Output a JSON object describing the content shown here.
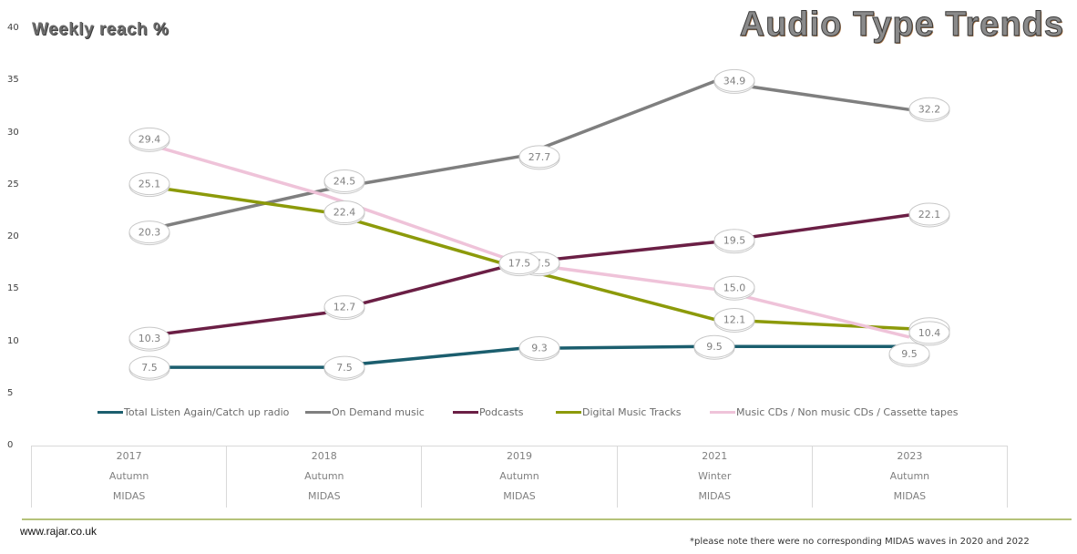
{
  "page": {
    "title": "Audio Type Trends",
    "subtitle": "Weekly reach %",
    "site": "www.rajar.co.uk",
    "note": "*please note there were no corresponding MIDAS waves in 2020 and 2022"
  },
  "y_axis": {
    "ticks": [
      "0",
      "5",
      "10",
      "15",
      "20",
      "25",
      "30",
      "35",
      "40"
    ]
  },
  "x_axis": {
    "cells": [
      {
        "year": "2017",
        "season": "Autumn",
        "source": "MIDAS"
      },
      {
        "year": "2018",
        "season": "Autumn",
        "source": "MIDAS"
      },
      {
        "year": "2019",
        "season": "Autumn",
        "source": "MIDAS"
      },
      {
        "year": "2021",
        "season": "Winter",
        "source": "MIDAS"
      },
      {
        "year": "2023",
        "season": "Autumn",
        "source": "MIDAS"
      }
    ]
  },
  "legend": [
    {
      "label": "Total Listen Again/Catch up radio",
      "color": "#1b5e6e"
    },
    {
      "label": "On Demand music",
      "color": "#7f7f7f"
    },
    {
      "label": "Podcasts",
      "color": "#6b1f45"
    },
    {
      "label": "Digital Music Tracks",
      "color": "#8c9a0a"
    },
    {
      "label": "Music CDs / Non music CDs / Cassette tapes",
      "color": "#efc3d9"
    }
  ],
  "chart_data": {
    "type": "line",
    "title": "Audio Type Trends",
    "ylabel": "Weekly reach %",
    "xlabel": "",
    "ylim": [
      0,
      40
    ],
    "yticks": [
      0,
      5,
      10,
      15,
      20,
      25,
      30,
      35,
      40
    ],
    "grid": false,
    "legend_position": "bottom",
    "categories": [
      "2017 Autumn MIDAS",
      "2018 Autumn MIDAS",
      "2019 Autumn MIDAS",
      "2021 Winter MIDAS",
      "2023 Autumn MIDAS"
    ],
    "series": [
      {
        "name": "Total Listen Again/Catch up radio",
        "color": "#1b5e6e",
        "values": [
          7.5,
          7.5,
          9.3,
          9.5,
          9.5
        ]
      },
      {
        "name": "On Demand music",
        "color": "#7f7f7f",
        "values": [
          20.3,
          24.5,
          27.7,
          34.9,
          32.2
        ]
      },
      {
        "name": "Podcasts",
        "color": "#6b1f45",
        "values": [
          10.3,
          12.7,
          17.5,
          19.5,
          22.1
        ]
      },
      {
        "name": "Digital Music Tracks",
        "color": "#8c9a0a",
        "values": [
          25.1,
          22.4,
          17.0,
          12.1,
          11.2
        ]
      },
      {
        "name": "Music CDs / Non music CDs / Cassette tapes",
        "color": "#efc3d9",
        "values": [
          29.4,
          24.0,
          17.5,
          15.0,
          10.4
        ]
      }
    ],
    "annotations": "Some data labels overlap (2018 CDs hidden behind 24.5; 2019 Digital Music hidden behind 17.5)",
    "note": "*please note there were no corresponding MIDAS waves in 2020 and 2022"
  }
}
